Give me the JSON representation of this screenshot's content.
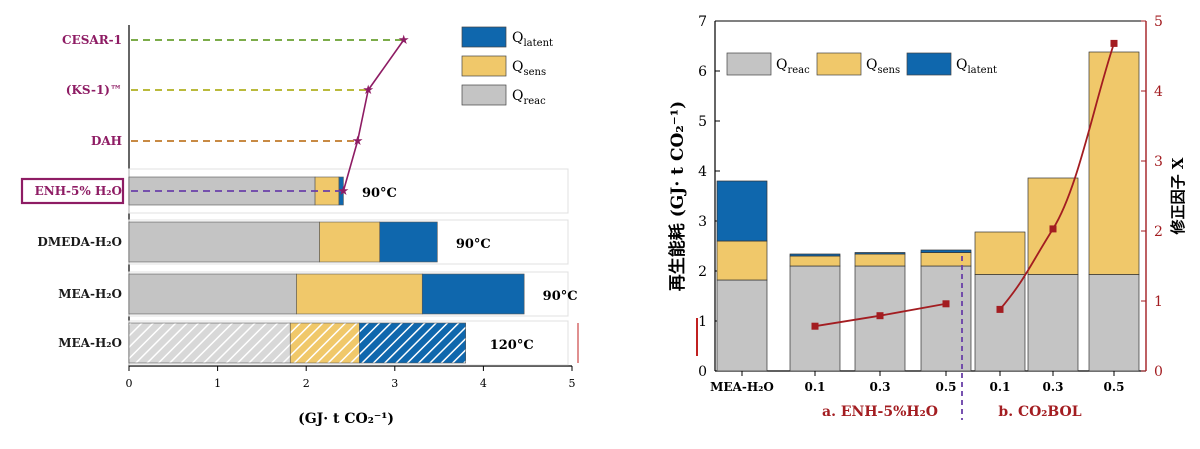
{
  "colors": {
    "reac": "#c4c4c4",
    "sens": "#f0c86a",
    "latent": "#0f67ad",
    "line_left": "#8e1c64",
    "line_right": "#a31d21",
    "enh_box": "#8e1c64"
  },
  "chart_data": [
    {
      "type": "bar",
      "orientation": "horizontal",
      "stacked": true,
      "categories": [
        "MEA-H₂O",
        "MEA-H₂O",
        "DMEDA-H₂O",
        "ENH-5% H₂O",
        "DAH",
        "(KS-1)™",
        "CESAR-1"
      ],
      "temperatures": [
        "120°C",
        "90°C",
        "90°C",
        "90°C",
        "",
        "",
        ""
      ],
      "series": [
        {
          "name": "Q_reac",
          "values": [
            1.82,
            1.89,
            2.15,
            2.1,
            null,
            null,
            null
          ]
        },
        {
          "name": "Q_sens",
          "values": [
            0.78,
            1.42,
            0.68,
            0.27,
            null,
            null,
            null
          ]
        },
        {
          "name": "Q_latent",
          "values": [
            1.2,
            1.15,
            0.65,
            0.05,
            null,
            null,
            null
          ]
        }
      ],
      "line": {
        "values": [
          null,
          null,
          null,
          2.42,
          2.58,
          2.7,
          3.1
        ]
      },
      "xlabel": "(GJ· t CO₂⁻¹)",
      "xlim": [
        0,
        5
      ],
      "xticks": [
        "0",
        "1",
        "2",
        "3",
        "4",
        "5"
      ],
      "legend": [
        "Q_latent",
        "Q_sens",
        "Q_reac"
      ],
      "legend_labels": {
        "latent": "latent",
        "sens": "sens",
        "reac": "reac",
        "q": "Q"
      },
      "legend_position": "top-right"
    },
    {
      "type": "bar",
      "stacked": true,
      "categories": [
        "MEA-H₂O",
        "0.1",
        "0.3",
        "0.5",
        "0.1",
        "0.3",
        "0.5"
      ],
      "groups": [
        "a. ENH-5%H₂O",
        "b. CO₂BOL"
      ],
      "series": [
        {
          "name": "Q_reac",
          "values": [
            1.82,
            2.1,
            2.1,
            2.1,
            1.93,
            1.93,
            1.93
          ]
        },
        {
          "name": "Q_sens",
          "values": [
            0.78,
            0.2,
            0.24,
            0.27,
            0.85,
            1.93,
            4.45
          ]
        },
        {
          "name": "Q_latent",
          "values": [
            1.2,
            0.04,
            0.03,
            0.05,
            0.0,
            0.0,
            0.0
          ]
        }
      ],
      "line": {
        "x_index": [
          1,
          2,
          3,
          4,
          5,
          6
        ],
        "values": [
          0.64,
          0.79,
          0.96,
          0.88,
          2.03,
          4.68
        ]
      },
      "ylabel": "再生能耗 (GJ· t CO₂⁻¹)",
      "y2label": "修正因子 X",
      "ylim": [
        0,
        7
      ],
      "y2lim": [
        0,
        5
      ],
      "yticks": [
        "0",
        "1",
        "2",
        "3",
        "4",
        "5",
        "6",
        "7"
      ],
      "y2ticks": [
        "0",
        "1",
        "2",
        "3",
        "4",
        "5"
      ],
      "legend": [
        "Q_reac",
        "Q_sens",
        "Q_latent"
      ],
      "legend_position": "top-left"
    }
  ]
}
